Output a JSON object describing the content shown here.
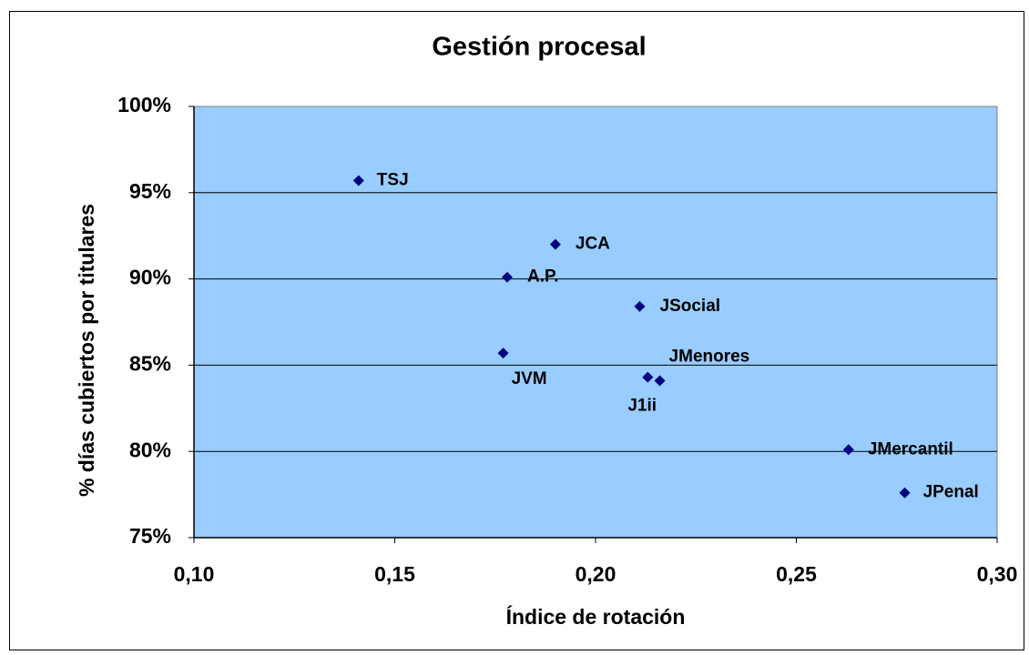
{
  "chart_data": {
    "type": "scatter",
    "title": "Gestión procesal",
    "x_label": "Índice de rotación",
    "y_label": "% días cubiertos por titulares",
    "labels": [
      "TSJ",
      "JCA",
      "A.P.",
      "JSocial",
      "JVM",
      "J1ii",
      "JMenores",
      "JMercantil",
      "JPenal"
    ],
    "x": [
      0.141,
      0.19,
      0.178,
      0.211,
      0.177,
      0.213,
      0.216,
      0.263,
      0.277
    ],
    "values": [
      95.7,
      92.0,
      90.1,
      88.4,
      85.7,
      84.3,
      84.1,
      80.1,
      77.6
    ],
    "color": "#000080",
    "background": "#99ccff",
    "xlim": [
      0.1,
      0.3
    ],
    "xticks": [
      {
        "value": 0.1,
        "label": "0,10"
      },
      {
        "value": 0.15,
        "label": "0,15"
      },
      {
        "value": 0.2,
        "label": "0,20"
      },
      {
        "value": 0.25,
        "label": "0,25"
      },
      {
        "value": 0.3,
        "label": "0,30"
      }
    ],
    "ylim": [
      75,
      100
    ],
    "yticks": [
      {
        "value": 75,
        "label": "75%"
      },
      {
        "value": 80,
        "label": "80%"
      },
      {
        "value": 85,
        "label": "85%"
      },
      {
        "value": 90,
        "label": "90%"
      },
      {
        "value": 95,
        "label": "95%"
      },
      {
        "value": 100,
        "label": "100%"
      }
    ],
    "grid": true
  }
}
